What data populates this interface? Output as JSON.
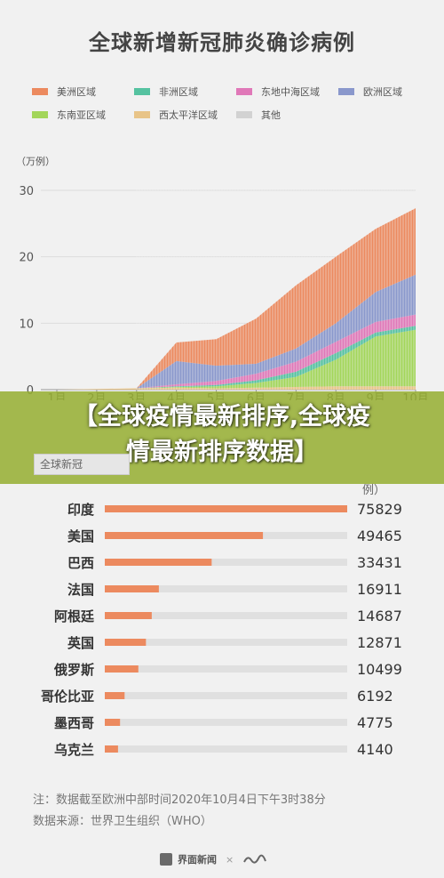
{
  "banner": {
    "line1": "【全球疫情最新排序,全球疫",
    "line2": "情最新排序数据】"
  },
  "section2": {
    "title": "全球新冠",
    "unit": "例）"
  },
  "notes": {
    "note": "注：数据截至欧洲中部时间2020年10月4日下午3时38分",
    "source": "数据来源：世界卫生组织（WHO）"
  },
  "footer": {
    "brand": "界面新闻",
    "sep": "×"
  },
  "colors": {
    "americas": "#ec8a5f",
    "africa": "#55c2a0",
    "east_med": "#e078b8",
    "europe": "#8a98cc",
    "se_asia": "#a3d65a",
    "west_pacific": "#e8c488",
    "other": "#d2d2d2",
    "bar": "#ec8a5f",
    "bar_track": "#e0e0e0"
  },
  "chart_data": [
    {
      "type": "area",
      "title": "全球新增新冠肺炎确诊病例",
      "unit_label": "（万例）",
      "ylim": [
        0,
        32
      ],
      "yticks": [
        0,
        10,
        20,
        30
      ],
      "x": [
        "1月",
        "2月",
        "3月",
        "4月",
        "5月",
        "6月",
        "7月",
        "8月",
        "9月",
        "10月"
      ],
      "legend": [
        {
          "name": "美洲区域",
          "key": "americas"
        },
        {
          "name": "非洲区域",
          "key": "africa"
        },
        {
          "name": "东地中海区域",
          "key": "east_med"
        },
        {
          "name": "欧洲区域",
          "key": "europe"
        },
        {
          "name": "东南亚区域",
          "key": "se_asia"
        },
        {
          "name": "西太平洋区域",
          "key": "west_pacific"
        },
        {
          "name": "其他",
          "key": "other"
        }
      ],
      "series": [
        {
          "name": "西太平洋区域",
          "key": "west_pacific",
          "values": [
            0,
            0.1,
            0.2,
            0.3,
            0.2,
            0.3,
            0.4,
            0.5,
            0.5,
            0.5
          ]
        },
        {
          "name": "东南亚区域",
          "key": "se_asia",
          "values": [
            0,
            0,
            0,
            0.1,
            0.3,
            0.7,
            1.5,
            4.0,
            7.5,
            8.5
          ]
        },
        {
          "name": "非洲区域",
          "key": "africa",
          "values": [
            0,
            0,
            0,
            0.1,
            0.2,
            0.4,
            0.8,
            1.0,
            0.6,
            0.6
          ]
        },
        {
          "name": "东地中海区域",
          "key": "east_med",
          "values": [
            0,
            0,
            0,
            0.3,
            0.6,
            1.0,
            1.5,
            1.7,
            1.6,
            1.7
          ]
        },
        {
          "name": "欧洲区域",
          "key": "europe",
          "values": [
            0,
            0,
            0,
            3.5,
            2.3,
            1.5,
            2.0,
            2.8,
            4.5,
            6.0
          ]
        },
        {
          "name": "美洲区域",
          "key": "americas",
          "values": [
            0,
            0,
            0,
            2.8,
            4.0,
            6.8,
            9.5,
            10.0,
            9.5,
            10.0
          ]
        },
        {
          "name": "其他",
          "key": "other",
          "values": [
            0,
            0,
            0,
            0,
            0,
            0,
            0,
            0,
            0,
            0
          ]
        }
      ]
    },
    {
      "type": "bar",
      "title": "全球新冠",
      "unit_label": "例）",
      "categories": [
        "印度",
        "美国",
        "巴西",
        "法国",
        "阿根廷",
        "英国",
        "俄罗斯",
        "哥伦比亚",
        "墨西哥",
        "乌克兰"
      ],
      "values": [
        75829,
        49465,
        33431,
        16911,
        14687,
        12871,
        10499,
        6192,
        4775,
        4140
      ],
      "xlim": [
        0,
        75829
      ]
    }
  ]
}
